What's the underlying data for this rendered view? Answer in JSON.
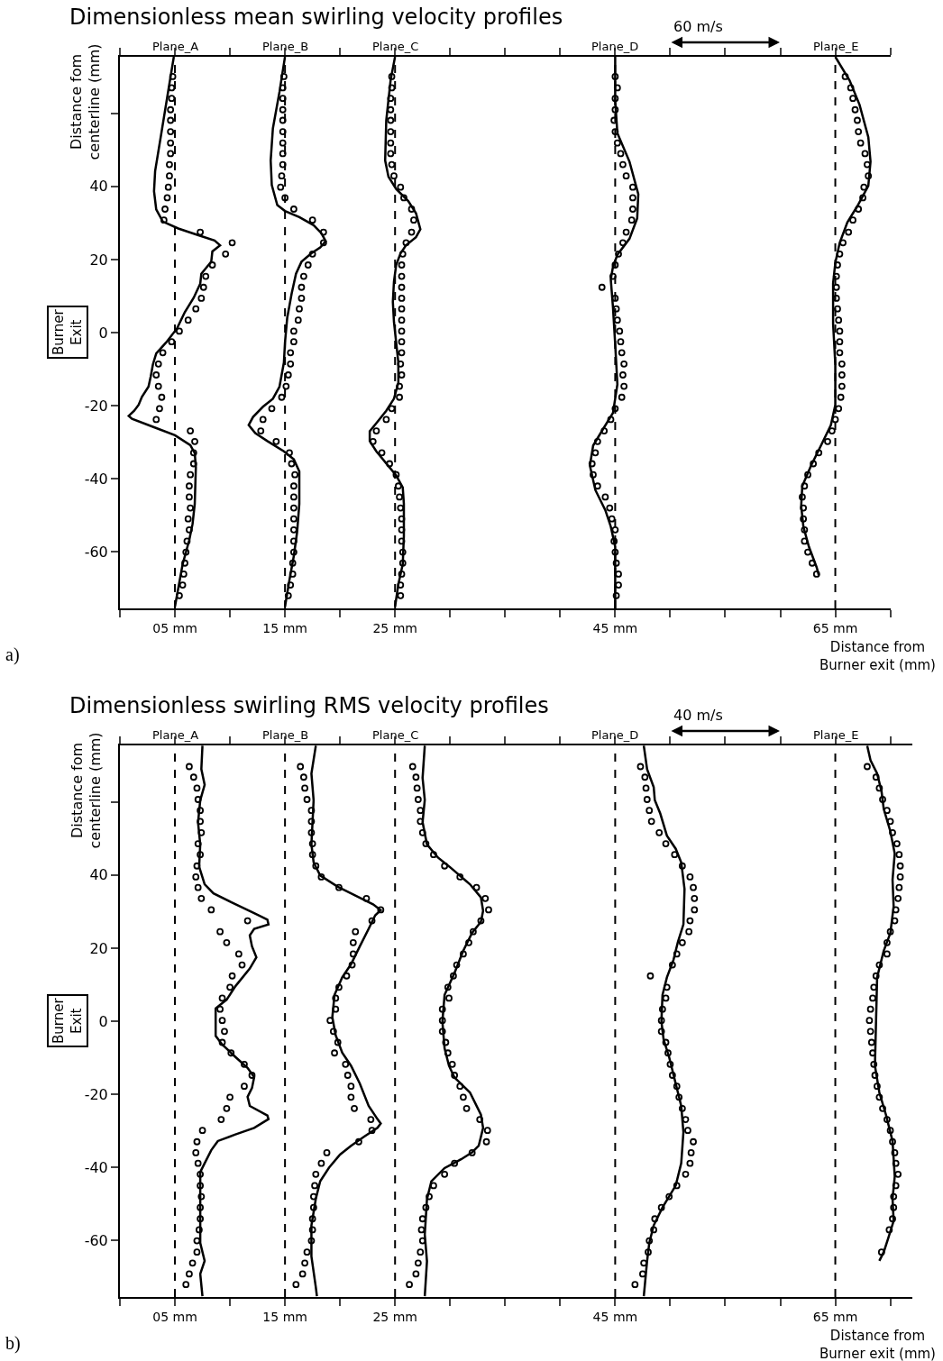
{
  "chart_data": [
    {
      "type": "line",
      "title": "Dimensionless mean swirling velocity profiles",
      "xlabel": "Distance from\nBurner exit (mm)",
      "ylabel": "Distance fom\ncenterline (mm)",
      "xlim": [
        0,
        70
      ],
      "xticks": [
        {
          "value": 0,
          "label": null
        },
        {
          "value": 5,
          "label": "05 mm"
        },
        {
          "value": 10,
          "label": null
        },
        {
          "value": 15,
          "label": "15 mm"
        },
        {
          "value": 20,
          "label": null
        },
        {
          "value": 25,
          "label": "25 mm"
        },
        {
          "value": 30,
          "label": null
        },
        {
          "value": 35,
          "label": null
        },
        {
          "value": 40,
          "label": null
        },
        {
          "value": 45,
          "label": "45 mm"
        },
        {
          "value": 50,
          "label": null
        },
        {
          "value": 55,
          "label": null
        },
        {
          "value": 60,
          "label": null
        },
        {
          "value": 65,
          "label": "65 mm"
        },
        {
          "value": 70,
          "label": null
        }
      ],
      "ylim": [
        -75.5,
        75.5
      ],
      "yticks": [
        {
          "value": 60,
          "label": null
        },
        40,
        20,
        0,
        -20,
        -40,
        -60
      ],
      "line_style": "solid",
      "ref_lines": [
        {
          "axis": "x",
          "value": 5,
          "label": "Plane_A",
          "color": "#000000",
          "line_style": "dashed"
        },
        {
          "axis": "x",
          "value": 15,
          "label": "Plane_B",
          "color": "#000000",
          "line_style": "dashed"
        },
        {
          "axis": "x",
          "value": 25,
          "label": "Plane_C",
          "color": "#000000",
          "line_style": "dashed"
        },
        {
          "axis": "x",
          "value": 45,
          "label": "Plane_D",
          "color": "#000000",
          "line_style": "dashed"
        },
        {
          "axis": "x",
          "value": 65,
          "label": "Plane_E",
          "color": "#000000",
          "line_style": "dashed"
        }
      ],
      "annotations": [
        "60 m/s",
        "Burner\nExit",
        "a)"
      ],
      "series": [
        {
          "type": "line",
          "color": "#000000",
          "x": [
            4.9,
            4.4,
            3.8,
            3.2,
            3.1,
            3.3,
            3.9,
            5.3,
            7.2,
            8.6,
            9.1,
            8.4,
            8.3,
            7.4,
            7.3,
            6.7,
            5.9,
            5.2,
            4.2,
            3.3,
            3.0,
            2.8,
            2.6,
            2.0,
            1.7,
            1.3,
            0.8,
            1.1,
            3.1,
            5.0,
            6.4,
            6.8,
            6.9,
            6.8,
            6.6,
            6.3,
            5.7,
            5.0
          ],
          "values": [
            75.5,
            66.3,
            55.2,
            44.2,
            38.7,
            33.7,
            30.4,
            28.5,
            26.6,
            25.2,
            23.9,
            22.2,
            19.4,
            16.1,
            13.4,
            9.5,
            5.6,
            1.2,
            -2.7,
            -5.7,
            -8.7,
            -12.0,
            -14.8,
            -17.6,
            -19.8,
            -21.4,
            -22.8,
            -23.6,
            -25.9,
            -28.1,
            -30.8,
            -33.0,
            -36.9,
            -46.9,
            -52.4,
            -56.8,
            -63.4,
            -75.0
          ]
        },
        {
          "type": "scatter",
          "marker": "circle",
          "color": "#000000",
          "x": [
            4.8,
            4.7,
            4.7,
            4.6,
            4.6,
            4.6,
            4.6,
            4.6,
            4.5,
            4.5,
            4.4,
            4.3,
            4.1,
            4.0,
            7.3,
            10.2,
            9.6,
            8.4,
            7.8,
            7.6,
            7.4,
            6.9,
            6.2,
            5.4,
            4.7,
            3.9,
            3.5,
            3.3,
            3.5,
            3.8,
            3.6,
            3.3,
            6.4,
            6.8,
            6.7,
            6.7,
            6.4,
            6.3,
            6.3,
            6.4,
            6.2,
            6.3,
            6.1,
            6.0,
            5.9,
            5.8,
            5.7,
            5.4
          ],
          "values": [
            70.1,
            67.0,
            64.1,
            61.0,
            58.1,
            55.0,
            51.9,
            49.0,
            46.0,
            42.9,
            39.8,
            36.9,
            33.8,
            30.8,
            27.5,
            24.6,
            21.5,
            18.5,
            15.4,
            12.4,
            9.4,
            6.5,
            3.4,
            0.4,
            -2.5,
            -5.5,
            -8.6,
            -11.6,
            -14.7,
            -17.7,
            -20.8,
            -23.8,
            -26.9,
            -29.8,
            -32.9,
            -35.9,
            -38.9,
            -42.0,
            -45.0,
            -48.0,
            -51.0,
            -54.0,
            -57.1,
            -60.1,
            -63.1,
            -66.1,
            -69.1,
            -72.0
          ]
        },
        {
          "type": "line",
          "color": "#000000",
          "x": [
            15.0,
            14.5,
            13.9,
            13.7,
            13.8,
            14.3,
            15.0,
            16.3,
            17.6,
            18.3,
            18.7,
            18.2,
            17.4,
            16.5,
            16.0,
            15.6,
            15.2,
            15.0,
            14.9,
            14.5,
            13.9,
            13.0,
            12.1,
            11.7,
            12.3,
            13.4,
            14.9,
            15.8,
            16.3,
            16.3,
            16.1,
            15.8,
            15.4,
            15.0
          ],
          "values": [
            75.5,
            65.9,
            55.9,
            47.1,
            40.4,
            34.9,
            33.3,
            31.6,
            29.4,
            27.2,
            25.0,
            23.3,
            21.7,
            19.4,
            16.1,
            10.6,
            4.0,
            -2.7,
            -8.2,
            -14.8,
            -18.1,
            -20.3,
            -23.1,
            -25.3,
            -27.5,
            -29.7,
            -32.5,
            -34.7,
            -38.0,
            -46.9,
            -54.6,
            -61.2,
            -67.8,
            -75.0
          ]
        },
        {
          "type": "scatter",
          "marker": "circle",
          "color": "#000000",
          "x": [
            14.9,
            14.8,
            14.8,
            14.8,
            14.8,
            14.8,
            14.8,
            14.8,
            14.8,
            14.7,
            14.6,
            15.0,
            15.8,
            17.5,
            18.5,
            18.5,
            17.5,
            17.1,
            16.7,
            16.5,
            16.5,
            16.3,
            16.2,
            15.8,
            15.8,
            15.5,
            15.5,
            15.3,
            15.1,
            14.7,
            13.8,
            13.0,
            12.8,
            14.2,
            15.4,
            15.6,
            15.9,
            15.8,
            15.8,
            15.8,
            15.8,
            15.8,
            15.8,
            15.8,
            15.7,
            15.7,
            15.5,
            15.3
          ],
          "values": [
            70.1,
            67.0,
            64.1,
            61.0,
            58.1,
            55.0,
            51.9,
            49.0,
            46.0,
            42.9,
            39.8,
            36.9,
            33.8,
            30.8,
            27.5,
            24.6,
            21.5,
            18.5,
            15.4,
            12.4,
            9.4,
            6.5,
            3.4,
            0.4,
            -2.5,
            -5.5,
            -8.6,
            -11.6,
            -14.7,
            -17.7,
            -20.8,
            -23.8,
            -26.9,
            -29.8,
            -32.9,
            -35.9,
            -38.9,
            -42.0,
            -45.0,
            -48.0,
            -51.0,
            -54.0,
            -57.1,
            -60.1,
            -63.1,
            -66.1,
            -69.1,
            -72.0
          ]
        },
        {
          "type": "line",
          "color": "#000000",
          "x": [
            25.0,
            24.6,
            24.2,
            24.1,
            24.4,
            25.1,
            26.2,
            26.9,
            27.3,
            26.9,
            26.0,
            25.5,
            25.1,
            24.9,
            24.8,
            24.9,
            25.1,
            25.3,
            25.3,
            24.9,
            24.2,
            23.3,
            22.7,
            22.7,
            23.3,
            24.2,
            25.1,
            25.7,
            25.8,
            25.8,
            25.7,
            25.3,
            25.0
          ],
          "values": [
            75.5,
            69.2,
            58.1,
            47.1,
            42.7,
            39.3,
            36.0,
            32.7,
            28.3,
            26.1,
            23.9,
            21.7,
            18.5,
            14.0,
            8.4,
            2.9,
            -2.7,
            -8.2,
            -13.7,
            -18.1,
            -21.4,
            -24.8,
            -27.0,
            -29.7,
            -32.5,
            -35.8,
            -39.1,
            -42.4,
            -46.9,
            -55.7,
            -63.4,
            -68.9,
            -75.0
          ]
        },
        {
          "type": "scatter",
          "marker": "circle",
          "color": "#000000",
          "x": [
            24.7,
            24.7,
            24.6,
            24.6,
            24.6,
            24.6,
            24.6,
            24.6,
            24.7,
            24.9,
            25.5,
            25.8,
            26.5,
            26.7,
            26.5,
            26.0,
            25.7,
            25.6,
            25.6,
            25.6,
            25.6,
            25.6,
            25.6,
            25.6,
            25.6,
            25.6,
            25.5,
            25.6,
            25.4,
            25.4,
            24.7,
            24.2,
            23.3,
            23.0,
            23.8,
            24.5,
            25.1,
            25.3,
            25.4,
            25.5,
            25.6,
            25.6,
            25.6,
            25.7,
            25.7,
            25.6,
            25.5,
            25.5
          ],
          "values": [
            70.1,
            67.0,
            64.1,
            61.0,
            58.1,
            55.0,
            51.9,
            49.0,
            46.0,
            42.9,
            39.8,
            36.9,
            33.8,
            30.8,
            27.5,
            24.6,
            21.5,
            18.5,
            15.4,
            12.4,
            9.4,
            6.5,
            3.4,
            0.4,
            -2.5,
            -5.5,
            -8.6,
            -11.6,
            -14.7,
            -17.7,
            -20.8,
            -23.8,
            -26.9,
            -29.8,
            -32.9,
            -35.9,
            -38.9,
            -42.0,
            -45.0,
            -48.0,
            -51.0,
            -54.0,
            -57.1,
            -60.1,
            -63.1,
            -66.1,
            -69.1,
            -72.0
          ]
        },
        {
          "type": "line",
          "color": "#000000",
          "x": [
            45.0,
            45.0,
            45.2,
            46.3,
            47.1,
            47.0,
            46.3,
            45.2,
            44.8,
            44.6,
            44.8,
            45.0,
            45.2,
            44.8,
            43.9,
            43.0,
            42.7,
            43.2,
            44.1,
            44.6,
            45.0,
            45.0
          ],
          "values": [
            75.5,
            63.5,
            54.6,
            46.8,
            37.9,
            31.3,
            25.7,
            21.3,
            18.0,
            14.6,
            6.9,
            -3.1,
            -14.2,
            -22.0,
            -26.4,
            -30.9,
            -36.4,
            -43.1,
            -48.6,
            -53.1,
            -58.6,
            -75.5
          ]
        },
        {
          "type": "scatter",
          "marker": "circle",
          "color": "#000000",
          "x": [
            45.0,
            45.2,
            45.0,
            45.0,
            44.9,
            45.0,
            45.2,
            45.5,
            45.7,
            46.0,
            46.6,
            46.6,
            46.6,
            46.5,
            46.0,
            45.7,
            45.3,
            45.0,
            44.8,
            43.8,
            45.0,
            45.1,
            45.2,
            45.4,
            45.5,
            45.6,
            45.8,
            45.7,
            45.8,
            45.6,
            45.0,
            44.6,
            44.0,
            43.4,
            43.2,
            42.9,
            43.0,
            43.4,
            44.1,
            44.5,
            44.7,
            45.0,
            44.9,
            45.0,
            45.1,
            45.3,
            45.3,
            45.1
          ],
          "values": [
            70.1,
            67.0,
            64.1,
            61.0,
            58.1,
            55.0,
            51.9,
            49.0,
            46.0,
            42.9,
            39.8,
            36.9,
            33.8,
            30.8,
            27.5,
            24.6,
            21.5,
            18.5,
            15.4,
            12.4,
            9.4,
            6.5,
            3.4,
            0.4,
            -2.5,
            -5.5,
            -8.6,
            -11.6,
            -14.7,
            -17.7,
            -20.8,
            -23.8,
            -26.9,
            -29.8,
            -32.9,
            -35.9,
            -38.9,
            -42.0,
            -45.0,
            -48.0,
            -51.0,
            -54.0,
            -57.1,
            -60.1,
            -63.1,
            -66.1,
            -69.1,
            -72.0
          ]
        },
        {
          "type": "line",
          "color": "#000000",
          "x": [
            65.0,
            66.3,
            67.2,
            68.0,
            68.2,
            68.0,
            67.0,
            66.1,
            65.4,
            65.0,
            64.8,
            64.8,
            65.0,
            65.0,
            64.6,
            63.7,
            62.8,
            62.0,
            61.9,
            62.1,
            62.6,
            63.3,
            63.5
          ],
          "values": [
            75.5,
            69.0,
            62.4,
            53.5,
            46.8,
            40.2,
            34.6,
            30.2,
            24.6,
            19.1,
            13.5,
            2.4,
            -8.7,
            -19.8,
            -25.3,
            -30.9,
            -36.4,
            -42.0,
            -47.5,
            -53.1,
            -58.6,
            -64.2,
            -66.4
          ]
        },
        {
          "type": "scatter",
          "marker": "circle",
          "color": "#000000",
          "x": [
            65.9,
            66.4,
            66.6,
            66.8,
            67.0,
            67.1,
            67.3,
            67.7,
            67.9,
            68.0,
            67.6,
            67.5,
            67.1,
            66.6,
            66.2,
            65.7,
            65.4,
            65.2,
            65.1,
            65.1,
            65.1,
            65.2,
            65.3,
            65.4,
            65.4,
            65.4,
            65.6,
            65.6,
            65.6,
            65.5,
            65.3,
            65.0,
            64.7,
            64.3,
            63.5,
            63.0,
            62.5,
            62.2,
            62.0,
            62.1,
            62.1,
            62.2,
            62.2,
            62.5,
            62.9,
            63.3,
            null,
            null
          ],
          "values": [
            70.1,
            67.0,
            64.1,
            61.0,
            58.1,
            55.0,
            51.9,
            49.0,
            46.0,
            42.9,
            39.8,
            36.9,
            33.8,
            30.8,
            27.5,
            24.6,
            21.5,
            18.5,
            15.4,
            12.4,
            9.4,
            6.5,
            3.4,
            0.4,
            -2.5,
            -5.5,
            -8.6,
            -11.6,
            -14.7,
            -17.7,
            -20.8,
            -23.8,
            -26.9,
            -29.8,
            -32.9,
            -35.9,
            -38.9,
            -42.0,
            -45.0,
            -48.0,
            -51.0,
            -54.0,
            -57.1,
            -60.1,
            -63.1,
            -66.1,
            null,
            null
          ]
        }
      ]
    },
    {
      "type": "line",
      "title": "Dimensionless swirling RMS velocity profiles",
      "xlabel": "Distance from\nBurner exit (mm)",
      "ylabel": "Distance fom\ncenterline (mm)",
      "xlim": [
        0,
        72
      ],
      "xticks": [
        {
          "value": 0,
          "label": null
        },
        {
          "value": 5,
          "label": "05 mm"
        },
        {
          "value": 10,
          "label": null
        },
        {
          "value": 15,
          "label": "15 mm"
        },
        {
          "value": 20,
          "label": null
        },
        {
          "value": 25,
          "label": "25 mm"
        },
        {
          "value": 30,
          "label": null
        },
        {
          "value": 35,
          "label": null
        },
        {
          "value": 40,
          "label": null
        },
        {
          "value": 45,
          "label": "45 mm"
        },
        {
          "value": 50,
          "label": null
        },
        {
          "value": 55,
          "label": null
        },
        {
          "value": 60,
          "label": null
        },
        {
          "value": 65,
          "label": "65 mm"
        },
        {
          "value": 70,
          "label": null
        }
      ],
      "ylim": [
        -75.5,
        75.5
      ],
      "yticks": [
        {
          "value": 60,
          "label": null
        },
        40,
        20,
        0,
        -20,
        -40,
        -60
      ],
      "line_style": "solid",
      "ref_lines": [
        {
          "axis": "x",
          "value": 5,
          "label": "Plane_A",
          "color": "#000000",
          "line_style": "dashed"
        },
        {
          "axis": "x",
          "value": 15,
          "label": "Plane_B",
          "color": "#000000",
          "line_style": "dashed"
        },
        {
          "axis": "x",
          "value": 25,
          "label": "Plane_C",
          "color": "#000000",
          "line_style": "dashed"
        },
        {
          "axis": "x",
          "value": 45,
          "label": "Plane_D",
          "color": "#000000",
          "line_style": "dashed"
        },
        {
          "axis": "x",
          "value": 65,
          "label": "Plane_E",
          "color": "#000000",
          "line_style": "dashed"
        }
      ],
      "annotations": [
        "40 m/s",
        "Burner\nExit",
        "b)"
      ],
      "series": [
        {
          "type": "line",
          "color": "#000000",
          "x": [
            7.5,
            7.4,
            7.7,
            7.3,
            7.1,
            7.3,
            7.2,
            7.7,
            8.5,
            10.1,
            12.2,
            13.4,
            13.5,
            12.2,
            11.8,
            12.0,
            12.4,
            11.8,
            10.5,
            9.7,
            8.7,
            8.7,
            9.3,
            10.5,
            11.6,
            12.2,
            12.0,
            11.6,
            11.8,
            13.4,
            13.5,
            12.2,
            10.5,
            8.9,
            8.3,
            7.7,
            7.3,
            7.3,
            7.3,
            7.3,
            7.7,
            7.3,
            7.5
          ],
          "values": [
            75.4,
            69.0,
            64.7,
            60.5,
            54.4,
            48.4,
            42.3,
            37.5,
            35.0,
            32.6,
            29.6,
            27.8,
            26.5,
            25.3,
            23.5,
            20.5,
            17.5,
            14.4,
            9.6,
            5.9,
            3.5,
            -4.0,
            -6.4,
            -9.8,
            -12.8,
            -15.3,
            -18.3,
            -20.7,
            -23.2,
            -25.8,
            -26.8,
            -29.2,
            -31.0,
            -32.8,
            -35.3,
            -38.9,
            -41.3,
            -48.6,
            -55.9,
            -60.7,
            -65.6,
            -69.2,
            -75.3
          ]
        },
        {
          "type": "scatter",
          "marker": "circle",
          "color": "#000000",
          "x": [
            6.3,
            6.7,
            7.0,
            7.1,
            7.3,
            7.3,
            7.4,
            7.1,
            7.3,
            7.0,
            6.9,
            7.1,
            7.4,
            8.3,
            11.6,
            9.1,
            9.7,
            10.8,
            11.1,
            10.2,
            10.0,
            9.3,
            9.1,
            9.3,
            9.5,
            9.3,
            10.1,
            11.3,
            12.0,
            11.3,
            10.0,
            9.7,
            9.2,
            7.5,
            7.0,
            6.9,
            7.1,
            7.3,
            7.3,
            7.4,
            7.3,
            7.3,
            7.2,
            7.0,
            7.0,
            6.6,
            6.3,
            6.0
          ],
          "values": [
            69.7,
            66.8,
            63.8,
            60.7,
            57.7,
            54.7,
            51.6,
            48.6,
            45.6,
            42.5,
            39.5,
            36.6,
            33.6,
            30.5,
            27.5,
            24.5,
            21.5,
            18.4,
            15.4,
            12.4,
            9.3,
            6.3,
            3.3,
            0.2,
            -2.8,
            -5.8,
            -8.7,
            -11.8,
            -14.8,
            -17.8,
            -20.8,
            -23.9,
            -26.9,
            -29.9,
            -33.0,
            -36.0,
            -38.9,
            -41.9,
            -45.0,
            -48.0,
            -51.0,
            -54.1,
            -57.1,
            -60.1,
            -63.2,
            -66.2,
            -69.2,
            -72.1
          ]
        },
        {
          "type": "line",
          "color": "#000000",
          "x": [
            17.8,
            17.4,
            17.6,
            17.4,
            17.6,
            18.2,
            19.8,
            21.4,
            23.0,
            23.7,
            23.2,
            22.6,
            21.8,
            21.0,
            20.2,
            19.5,
            19.3,
            19.6,
            20.2,
            21.0,
            21.8,
            22.6,
            23.4,
            23.7,
            23.4,
            22.2,
            21.0,
            20.0,
            19.0,
            18.2,
            17.8,
            17.4,
            17.4,
            17.8,
            17.9
          ],
          "values": [
            75.4,
            67.8,
            60.5,
            48.4,
            43.5,
            39.9,
            36.8,
            34.4,
            32.0,
            30.4,
            29.0,
            25.3,
            20.5,
            15.6,
            12.0,
            7.2,
            1.1,
            -3.8,
            -8.6,
            -12.2,
            -17.1,
            -23.2,
            -26.8,
            -28.0,
            -29.2,
            -31.6,
            -34.1,
            -36.5,
            -40.1,
            -43.8,
            -48.6,
            -55.9,
            -64.4,
            -72.8,
            -75.3
          ]
        },
        {
          "type": "scatter",
          "marker": "circle",
          "color": "#000000",
          "x": [
            16.4,
            16.7,
            16.8,
            17.0,
            17.4,
            17.4,
            17.4,
            17.5,
            17.5,
            17.8,
            18.3,
            19.9,
            22.4,
            23.7,
            22.9,
            21.4,
            21.2,
            21.2,
            21.1,
            20.6,
            19.9,
            19.6,
            19.6,
            19.1,
            19.4,
            19.8,
            19.5,
            20.5,
            20.7,
            21.0,
            21.0,
            21.3,
            22.8,
            22.9,
            21.7,
            18.8,
            18.3,
            17.8,
            17.7,
            17.6,
            17.6,
            17.5,
            17.5,
            17.4,
            17.0,
            16.8,
            16.6,
            16.0
          ],
          "values": [
            69.7,
            66.8,
            63.8,
            60.7,
            57.7,
            54.7,
            51.6,
            48.6,
            45.6,
            42.5,
            39.5,
            36.6,
            33.6,
            30.5,
            27.5,
            24.5,
            21.5,
            18.4,
            15.4,
            12.4,
            9.3,
            6.3,
            3.3,
            0.2,
            -2.8,
            -5.8,
            -8.7,
            -11.8,
            -14.8,
            -17.8,
            -20.8,
            -23.9,
            -26.9,
            -29.9,
            -33.0,
            -36.0,
            -38.9,
            -41.9,
            -45.0,
            -48.0,
            -51.0,
            -54.1,
            -57.1,
            -60.1,
            -63.2,
            -66.2,
            -69.2,
            -72.1
          ]
        },
        {
          "type": "line",
          "color": "#000000",
          "x": [
            27.7,
            27.5,
            27.7,
            27.5,
            27.9,
            28.9,
            29.9,
            31.1,
            31.8,
            32.8,
            33.0,
            32.8,
            32.0,
            31.2,
            30.4,
            29.5,
            29.3,
            29.5,
            29.9,
            30.4,
            31.8,
            32.8,
            33.0,
            32.6,
            32.0,
            31.0,
            29.5,
            28.3,
            27.9,
            27.7,
            27.9,
            27.7
          ],
          "values": [
            75.4,
            66.6,
            60.6,
            54.5,
            48.4,
            44.8,
            42.4,
            39.3,
            37.5,
            33.9,
            30.2,
            27.2,
            24.2,
            19.3,
            13.2,
            7.2,
            -0.1,
            -7.4,
            -12.2,
            -15.4,
            -19.5,
            -25.6,
            -29.2,
            -34.1,
            -35.9,
            -37.8,
            -40.2,
            -43.8,
            -48.7,
            -58.4,
            -65.7,
            -75.3
          ]
        },
        {
          "type": "scatter",
          "marker": "circle",
          "color": "#000000",
          "x": [
            26.6,
            26.9,
            27.0,
            27.1,
            27.3,
            27.3,
            27.5,
            27.8,
            28.5,
            29.5,
            30.9,
            32.4,
            33.2,
            33.5,
            32.8,
            32.1,
            31.7,
            31.2,
            30.6,
            30.3,
            29.8,
            29.9,
            29.3,
            29.3,
            29.3,
            29.6,
            29.8,
            30.2,
            30.4,
            30.9,
            31.2,
            31.5,
            32.7,
            33.4,
            33.3,
            32.0,
            30.4,
            29.5,
            28.5,
            28.1,
            27.8,
            27.5,
            27.4,
            27.5,
            27.3,
            27.1,
            26.9,
            26.3
          ],
          "values": [
            69.7,
            66.8,
            63.8,
            60.7,
            57.7,
            54.7,
            51.6,
            48.6,
            45.6,
            42.5,
            39.5,
            36.6,
            33.6,
            30.5,
            27.5,
            24.5,
            21.5,
            18.4,
            15.4,
            12.4,
            9.3,
            6.3,
            3.3,
            0.2,
            -2.8,
            -5.8,
            -8.7,
            -11.8,
            -14.8,
            -17.8,
            -20.8,
            -23.9,
            -26.9,
            -29.9,
            -33.0,
            -36.0,
            -38.9,
            -41.9,
            -45.0,
            -48.0,
            -51.0,
            -54.1,
            -57.1,
            -60.1,
            -63.2,
            -66.2,
            -69.2,
            -72.1
          ]
        },
        {
          "type": "line",
          "color": "#000000",
          "x": [
            47.6,
            47.9,
            48.5,
            48.6,
            49.1,
            49.7,
            50.5,
            51.0,
            51.3,
            51.2,
            50.7,
            50.3,
            49.7,
            49.3,
            49.2,
            49.4,
            49.9,
            50.5,
            51.0,
            51.2,
            51.0,
            50.5,
            49.3,
            48.5,
            48.1,
            47.9,
            47.6
          ],
          "values": [
            75.4,
            69.0,
            64.1,
            60.5,
            56.8,
            50.8,
            47.2,
            43.5,
            36.2,
            26.5,
            21.7,
            16.8,
            12.0,
            7.2,
            -0.1,
            -5.0,
            -9.8,
            -17.1,
            -23.2,
            -30.4,
            -38.9,
            -45.0,
            -51.0,
            -55.9,
            -60.7,
            -65.6,
            -75.3
          ]
        },
        {
          "type": "scatter",
          "marker": "circle",
          "color": "#000000",
          "x": [
            47.3,
            47.7,
            47.8,
            47.9,
            48.1,
            48.3,
            49.0,
            49.6,
            50.4,
            51.1,
            51.8,
            52.1,
            52.2,
            52.2,
            51.8,
            51.7,
            51.1,
            50.6,
            50.2,
            48.2,
            49.7,
            49.6,
            49.3,
            49.2,
            49.2,
            49.6,
            49.8,
            50.0,
            50.2,
            50.6,
            50.8,
            51.1,
            51.4,
            51.6,
            52.1,
            51.9,
            51.8,
            51.4,
            50.6,
            49.9,
            49.2,
            48.6,
            48.5,
            48.1,
            48.0,
            47.6,
            47.5,
            46.8
          ],
          "values": [
            69.7,
            66.8,
            63.8,
            60.7,
            57.7,
            54.7,
            51.6,
            48.6,
            45.6,
            42.5,
            39.5,
            36.6,
            33.6,
            30.5,
            27.5,
            24.5,
            21.5,
            18.4,
            15.4,
            12.4,
            9.3,
            6.3,
            3.3,
            0.2,
            -2.8,
            -5.8,
            -8.7,
            -11.8,
            -14.8,
            -17.8,
            -20.8,
            -23.9,
            -26.9,
            -29.9,
            -33.0,
            -36.0,
            -38.9,
            -41.9,
            -45.0,
            -48.0,
            -51.0,
            -54.1,
            -57.1,
            -60.1,
            -63.2,
            -66.2,
            -69.2,
            -72.1
          ]
        },
        {
          "type": "line",
          "color": "#000000",
          "x": [
            67.9,
            68.2,
            68.8,
            69.2,
            69.4,
            70.0,
            70.4,
            70.2,
            70.3,
            70.0,
            69.4,
            68.8,
            68.7,
            68.6,
            69.0,
            69.6,
            70.2,
            70.4,
            70.2,
            70.3,
            69.8,
            69.4,
            69.0
          ],
          "values": [
            75.4,
            71.4,
            67.8,
            62.9,
            58.1,
            52.0,
            45.9,
            38.7,
            31.4,
            24.1,
            19.3,
            12.0,
            -0.1,
            -12.2,
            -19.5,
            -25.6,
            -32.8,
            -42.5,
            -48.6,
            -54.7,
            -59.5,
            -63.2,
            -65.6
          ]
        },
        {
          "type": "scatter",
          "marker": "circle",
          "color": "#000000",
          "x": [
            67.9,
            68.7,
            69.0,
            69.3,
            69.7,
            70.0,
            70.2,
            70.6,
            70.8,
            70.9,
            70.9,
            70.8,
            70.7,
            70.5,
            70.4,
            70.0,
            69.7,
            69.7,
            69.0,
            68.7,
            68.5,
            68.4,
            68.2,
            68.1,
            68.2,
            68.3,
            68.4,
            68.5,
            68.6,
            68.8,
            69.0,
            69.3,
            69.7,
            70.0,
            70.2,
            70.4,
            70.5,
            70.7,
            70.5,
            70.3,
            70.3,
            70.2,
            69.9,
            null,
            69.2,
            null,
            null,
            null
          ],
          "values": [
            69.7,
            66.8,
            63.8,
            60.7,
            57.7,
            54.7,
            51.6,
            48.6,
            45.6,
            42.5,
            39.5,
            36.6,
            33.6,
            30.5,
            27.5,
            24.5,
            21.5,
            18.4,
            15.4,
            12.4,
            9.3,
            6.3,
            3.3,
            0.2,
            -2.8,
            -5.8,
            -8.7,
            -11.8,
            -14.8,
            -17.8,
            -20.8,
            -23.9,
            -26.9,
            -29.9,
            -33.0,
            -36.0,
            -38.9,
            -41.9,
            -45.0,
            -48.0,
            -51.0,
            -54.1,
            -57.1,
            null,
            -63.2,
            null,
            null,
            null
          ]
        }
      ]
    }
  ]
}
